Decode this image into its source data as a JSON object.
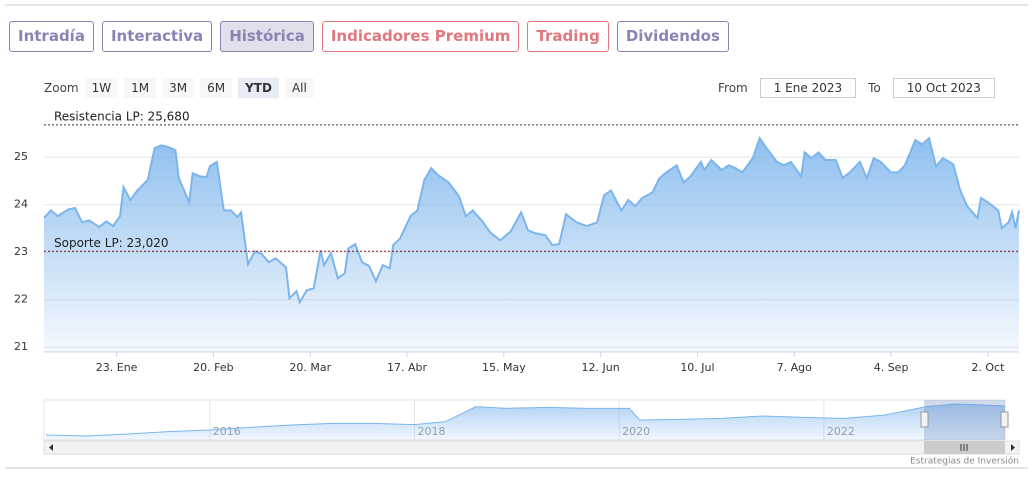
{
  "tabs": [
    {
      "label": "Intradía",
      "color": "#8a84b4"
    },
    {
      "label": "Interactiva",
      "color": "#8a84b4"
    },
    {
      "label": "Histórica",
      "color": "#8a84b4"
    },
    {
      "label": "Indicadores Premium",
      "color": "#e0787d"
    },
    {
      "label": "Trading",
      "color": "#e0787d"
    },
    {
      "label": "Dividendos",
      "color": "#8a84b4"
    }
  ],
  "active_tab": 2,
  "zoom": {
    "label": "Zoom",
    "buttons": [
      "1W",
      "1M",
      "3M",
      "6M",
      "YTD",
      "All"
    ],
    "active": 4
  },
  "range": {
    "from_label": "From",
    "from": "1 Ene 2023",
    "to_label": "To",
    "to": "10 Oct 2023"
  },
  "credits": "Estrategias de Inversión",
  "chart_data": {
    "type": "area",
    "color": "#7cb5ec",
    "x": [
      1,
      3,
      5,
      8,
      10,
      12,
      14,
      17,
      19,
      21,
      23,
      24,
      26,
      28,
      31,
      33,
      35,
      37,
      39,
      40,
      43,
      44,
      46,
      48,
      49,
      51,
      53,
      55,
      57,
      58,
      60,
      62,
      64,
      66,
      68,
      71,
      72,
      74,
      75,
      77,
      79,
      81,
      82,
      84,
      86,
      88,
      89,
      91,
      93,
      95,
      97,
      99,
      101,
      102,
      104,
      107,
      109,
      111,
      113,
      115,
      118,
      121,
      123,
      125,
      128,
      130,
      133,
      136,
      139,
      141,
      143,
      146,
      148,
      150,
      152,
      155,
      158,
      161,
      163,
      165,
      168,
      170,
      172,
      174,
      177,
      179,
      181,
      184,
      186,
      188,
      191,
      192,
      194,
      197,
      199,
      201,
      203,
      206,
      208,
      210,
      213,
      215,
      217,
      220,
      221,
      223,
      225,
      227,
      230,
      232,
      234,
      237,
      239,
      241,
      243,
      246,
      248,
      250,
      253,
      255,
      257,
      259,
      261,
      264,
      266,
      268,
      271,
      272,
      274,
      277,
      278,
      280,
      281,
      282,
      283
    ],
    "values": [
      23.72,
      23.88,
      23.76,
      23.9,
      23.93,
      23.63,
      23.67,
      23.53,
      23.65,
      23.55,
      23.76,
      24.37,
      24.1,
      24.3,
      24.52,
      25.19,
      25.25,
      25.21,
      25.15,
      24.56,
      24.05,
      24.66,
      24.6,
      24.58,
      24.81,
      24.9,
      23.88,
      23.88,
      23.74,
      23.84,
      22.75,
      23.02,
      22.96,
      22.79,
      22.87,
      22.68,
      22.03,
      22.18,
      21.95,
      22.2,
      22.24,
      23.04,
      22.73,
      22.98,
      22.45,
      22.56,
      23.08,
      23.17,
      22.79,
      22.71,
      22.39,
      22.73,
      22.66,
      23.15,
      23.29,
      23.76,
      23.88,
      24.52,
      24.77,
      24.62,
      24.47,
      24.18,
      23.76,
      23.88,
      23.63,
      23.42,
      23.25,
      23.44,
      23.84,
      23.46,
      23.4,
      23.36,
      23.15,
      23.17,
      23.8,
      23.63,
      23.55,
      23.63,
      24.2,
      24.3,
      23.88,
      24.1,
      23.97,
      24.14,
      24.26,
      24.56,
      24.68,
      24.83,
      24.47,
      24.6,
      24.9,
      24.73,
      24.94,
      24.73,
      24.83,
      24.77,
      24.68,
      24.98,
      25.4,
      25.19,
      24.9,
      24.83,
      24.9,
      24.6,
      25.1,
      24.98,
      25.1,
      24.94,
      24.94,
      24.56,
      24.68,
      24.9,
      24.56,
      24.98,
      24.9,
      24.68,
      24.68,
      24.83,
      25.36,
      25.27,
      25.4,
      24.81,
      24.98,
      24.85,
      24.3,
      23.97,
      23.72,
      24.14,
      24.05,
      23.88,
      23.51,
      23.63,
      23.84,
      23.51,
      23.88
    ],
    "xlim": [
      1,
      283
    ],
    "xticks": [
      {
        "value": 22,
        "label": "23. Ene"
      },
      {
        "value": 50,
        "label": "20. Feb"
      },
      {
        "value": 78,
        "label": "20. Mar"
      },
      {
        "value": 106,
        "label": "17. Abr"
      },
      {
        "value": 134,
        "label": "15. May"
      },
      {
        "value": 162,
        "label": "12. Jun"
      },
      {
        "value": 190,
        "label": "10. Jul"
      },
      {
        "value": 218,
        "label": "7. Ago"
      },
      {
        "value": 246,
        "label": "4. Sep"
      },
      {
        "value": 274,
        "label": "2. Oct"
      }
    ],
    "ylim": [
      20.9,
      25.93
    ],
    "yticks": [
      21,
      22,
      23,
      24,
      25
    ],
    "grid": true,
    "annotations": [
      {
        "value": 25.68,
        "label": "Resistencia LP: 25,680",
        "color": "#333333"
      },
      {
        "value": 23.02,
        "label": "Soporte LP: 23,020",
        "color": "#8b1a1a"
      }
    ],
    "navigator": {
      "x": [
        2014.4,
        2014.8,
        2015.2,
        2015.6,
        2016,
        2016.4,
        2016.8,
        2017.2,
        2017.6,
        2018,
        2018.3,
        2018.6,
        2018.9,
        2019.3,
        2019.7,
        2020.1,
        2020.2,
        2020.6,
        2021,
        2021.4,
        2021.8,
        2022.2,
        2022.6,
        2023,
        2023.3,
        2023.77
      ],
      "values": [
        15.5,
        15.2,
        15.8,
        16.5,
        17,
        17.8,
        18.5,
        19,
        19,
        18.6,
        19.5,
        24,
        23.5,
        23.8,
        23.5,
        23.5,
        20,
        20.2,
        20.5,
        21.2,
        20.8,
        20.5,
        21.5,
        24,
        24.8,
        24.2
      ],
      "xlim": [
        2014.38,
        2023.77
      ],
      "ylim": [
        14,
        26
      ],
      "xticks": [
        2016,
        2018,
        2020,
        2022
      ]
    }
  }
}
